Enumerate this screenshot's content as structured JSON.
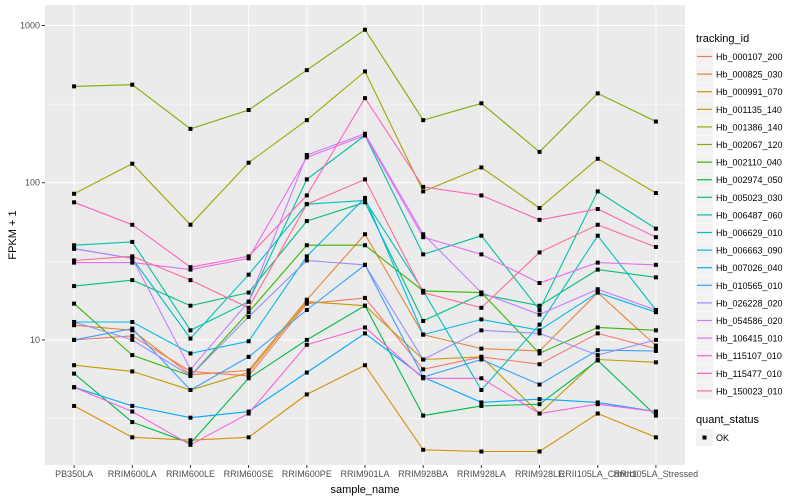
{
  "chart_data": {
    "type": "line",
    "title": "",
    "xlabel": "sample_name",
    "ylabel": "FPKM + 1",
    "yscale": "log10",
    "ylim": [
      1.6,
      1350
    ],
    "yticks": [
      10,
      100,
      1000
    ],
    "ytick_labels": [
      "10",
      "100",
      "1000"
    ],
    "grid": true,
    "legend_position": "right",
    "categories": [
      "PB350LA",
      "RRIM600LA",
      "RRIM600LE",
      "RRIM600SE",
      "RRIM600PE",
      "RRIM901LA",
      "RRIM928BA",
      "RRIM928LA",
      "RRIM928LE",
      "RRII105LA_Control",
      "RRII105LA_Stressed"
    ],
    "legend_title": "tracking_id",
    "shape_legend_title": "quant_status",
    "shape_legend_items": [
      "OK"
    ],
    "series": [
      {
        "name": "Hb_000107_200",
        "color": "#F8766D",
        "values": [
          10.0,
          10.6,
          6.3,
          5.9,
          17.0,
          18.5,
          6.5,
          7.8,
          7.0,
          11.0,
          8.8
        ]
      },
      {
        "name": "Hb_000825_030",
        "color": "#EA8331",
        "values": [
          12.4,
          11.5,
          6.0,
          6.4,
          18.0,
          47.0,
          10.8,
          8.8,
          8.5,
          20.0,
          9.2
        ]
      },
      {
        "name": "Hb_000991_070",
        "color": "#D89000",
        "values": [
          3.8,
          2.4,
          2.3,
          2.4,
          4.5,
          6.9,
          2.0,
          1.95,
          1.95,
          3.4,
          2.4
        ]
      },
      {
        "name": "Hb_001135_140",
        "color": "#C09B00",
        "values": [
          6.9,
          6.3,
          4.8,
          6.2,
          17.5,
          16.5,
          7.5,
          7.8,
          3.4,
          7.5,
          7.2
        ]
      },
      {
        "name": "Hb_001386_140",
        "color": "#A3A500",
        "values": [
          85,
          132,
          54,
          134,
          250,
          510,
          88,
          125,
          69,
          142,
          86
        ]
      },
      {
        "name": "Hb_002067_120",
        "color": "#7CAE00",
        "values": [
          410,
          420,
          220,
          290,
          520,
          940,
          250,
          320,
          157,
          370,
          245
        ]
      },
      {
        "name": "Hb_002110_040",
        "color": "#39B600",
        "values": [
          17,
          8.0,
          5.9,
          15.0,
          40,
          40,
          20.5,
          20.0,
          8.2,
          12.0,
          11.5
        ]
      },
      {
        "name": "Hb_002974_050",
        "color": "#00BB4E",
        "values": [
          6.1,
          3.0,
          2.2,
          5.7,
          10.0,
          16.5,
          3.3,
          3.8,
          3.9,
          7.4,
          3.3
        ]
      },
      {
        "name": "Hb_005023_030",
        "color": "#00BF7D",
        "values": [
          22,
          24,
          16.5,
          20,
          57,
          75,
          13.2,
          19.5,
          16.5,
          28,
          25
        ]
      },
      {
        "name": "Hb_006487_060",
        "color": "#00C1A3",
        "values": [
          40,
          42,
          11.5,
          17.5,
          105,
          200,
          35,
          46,
          15.5,
          88,
          51
        ]
      },
      {
        "name": "Hb_006629_010",
        "color": "#00BFC4",
        "values": [
          38,
          33,
          10.2,
          26,
          73,
          77,
          20.5,
          4.8,
          12.5,
          46,
          15.5
        ]
      },
      {
        "name": "Hb_006663_090",
        "color": "#00B8E7",
        "values": [
          13,
          13,
          8.2,
          9.8,
          34,
          80,
          10.8,
          13.5,
          11.5,
          20,
          15
        ]
      },
      {
        "name": "Hb_007026_040",
        "color": "#00A9FF",
        "values": [
          5.0,
          3.8,
          3.2,
          3.5,
          6.2,
          11.0,
          5.8,
          4.0,
          4.2,
          4.0,
          3.5
        ]
      },
      {
        "name": "Hb_010565_010",
        "color": "#35A2FF",
        "values": [
          10.0,
          11.8,
          4.8,
          7.8,
          15.5,
          30,
          5.8,
          7.5,
          5.2,
          8.6,
          8.5
        ]
      },
      {
        "name": "Hb_026228_020",
        "color": "#9590FF",
        "values": [
          13,
          10.0,
          5.9,
          14.0,
          32,
          30,
          7.5,
          11.5,
          11.0,
          8.0,
          10.0
        ]
      },
      {
        "name": "Hb_054586_020",
        "color": "#C77CFF",
        "values": [
          38,
          33,
          6.5,
          17.5,
          150,
          205,
          47,
          20,
          14.5,
          21,
          15.5
        ]
      },
      {
        "name": "Hb_106415_010",
        "color": "#E76BF3",
        "values": [
          31,
          31,
          28,
          33,
          145,
          200,
          45,
          35,
          23,
          31,
          30
        ]
      },
      {
        "name": "Hb_115107_010",
        "color": "#FA62DB",
        "values": [
          5.0,
          3.5,
          2.15,
          3.4,
          9.3,
          12,
          5.7,
          5.7,
          3.4,
          3.9,
          3.5
        ]
      },
      {
        "name": "Hb_115477_010",
        "color": "#FF62BC",
        "values": [
          75,
          54,
          29,
          34,
          83,
          345,
          94,
          83,
          58,
          68,
          45
        ]
      },
      {
        "name": "Hb_150023_010",
        "color": "#FF6C91",
        "values": [
          32,
          34,
          24,
          16,
          73,
          105,
          20,
          16,
          36,
          54,
          39
        ]
      }
    ]
  }
}
